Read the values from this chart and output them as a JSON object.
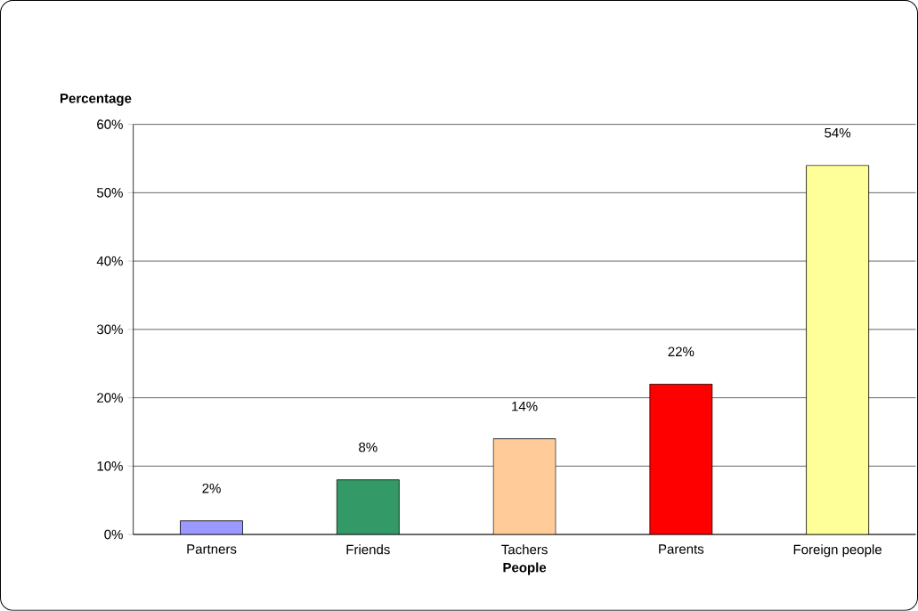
{
  "chart_data": {
    "type": "bar",
    "ylabel": "Percentage",
    "xlabel": "People",
    "categories": [
      "Partners",
      "Friends",
      "Tachers",
      "Parents",
      "Foreign people"
    ],
    "values": [
      2,
      8,
      14,
      22,
      54
    ],
    "colors": [
      "#9999ff",
      "#339966",
      "#ffcc99",
      "#ff0000",
      "#ffff99"
    ],
    "value_labels": [
      "2%",
      "8%",
      "14%",
      "22%",
      "54%"
    ],
    "ylim": [
      0,
      60
    ],
    "yticks": [
      {
        "value": 0,
        "label": "0%"
      },
      {
        "value": 10,
        "label": "10%"
      },
      {
        "value": 20,
        "label": "20%"
      },
      {
        "value": 30,
        "label": "30%"
      },
      {
        "value": 40,
        "label": "40%"
      },
      {
        "value": 50,
        "label": "50%"
      },
      {
        "value": 60,
        "label": "60%"
      }
    ],
    "grid": "y"
  }
}
